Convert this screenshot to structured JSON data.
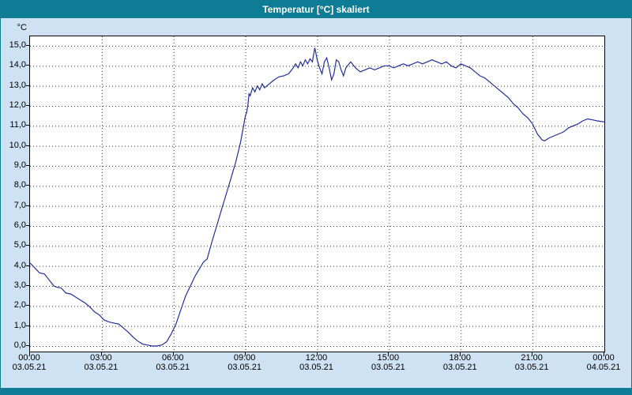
{
  "colors": {
    "titlebar": "#0e7c94",
    "title_text": "#ffffff",
    "background": "#cfe2f3",
    "plot_background": "#ffffff",
    "grid": "#333333",
    "line": "#232f9e"
  },
  "chart_data": {
    "type": "line",
    "title": "Temperatur [°C] skaliert",
    "xlabel": "",
    "ylabel": "°C",
    "ylim": [
      0,
      15
    ],
    "xlim_hours": [
      0,
      24
    ],
    "grid": "dashed",
    "legend": "none",
    "yticks": [
      {
        "v": 15,
        "label": "15,0"
      },
      {
        "v": 14,
        "label": "14,0"
      },
      {
        "v": 13,
        "label": "13,0"
      },
      {
        "v": 12,
        "label": "12,0"
      },
      {
        "v": 11,
        "label": "11,0"
      },
      {
        "v": 10,
        "label": "10,0"
      },
      {
        "v": 9,
        "label": "9,0"
      },
      {
        "v": 8,
        "label": "8,0"
      },
      {
        "v": 7,
        "label": "7,0"
      },
      {
        "v": 6,
        "label": "6,0"
      },
      {
        "v": 5,
        "label": "5,0"
      },
      {
        "v": 4,
        "label": "4,0"
      },
      {
        "v": 3,
        "label": "3,0"
      },
      {
        "v": 2,
        "label": "2,0"
      },
      {
        "v": 1,
        "label": "1,0"
      },
      {
        "v": 0,
        "label": "0,0"
      }
    ],
    "xticks": [
      {
        "h": 0,
        "time": "00:00",
        "date": "03.05.21"
      },
      {
        "h": 3,
        "time": "03:00",
        "date": "03.05.21"
      },
      {
        "h": 6,
        "time": "06:00",
        "date": "03.05.21"
      },
      {
        "h": 9,
        "time": "09:00",
        "date": "03.05.21"
      },
      {
        "h": 12,
        "time": "12:00",
        "date": "03.05.21"
      },
      {
        "h": 15,
        "time": "15:00",
        "date": "03.05.21"
      },
      {
        "h": 18,
        "time": "18:00",
        "date": "03.05.21"
      },
      {
        "h": 21,
        "time": "21:00",
        "date": "03.05.21"
      },
      {
        "h": 24,
        "time": "00:00",
        "date": "04.05.21"
      }
    ],
    "series": [
      {
        "name": "Temperatur [°C]",
        "color": "#232f9e",
        "points": [
          [
            0.0,
            4.15
          ],
          [
            0.2,
            3.9
          ],
          [
            0.4,
            3.65
          ],
          [
            0.6,
            3.6
          ],
          [
            0.8,
            3.3
          ],
          [
            1.0,
            3.0
          ],
          [
            1.1,
            2.95
          ],
          [
            1.3,
            2.9
          ],
          [
            1.5,
            2.65
          ],
          [
            1.7,
            2.6
          ],
          [
            1.9,
            2.45
          ],
          [
            2.1,
            2.3
          ],
          [
            2.3,
            2.15
          ],
          [
            2.5,
            1.95
          ],
          [
            2.7,
            1.7
          ],
          [
            2.9,
            1.55
          ],
          [
            3.1,
            1.3
          ],
          [
            3.3,
            1.2
          ],
          [
            3.5,
            1.15
          ],
          [
            3.7,
            1.1
          ],
          [
            3.9,
            0.9
          ],
          [
            4.1,
            0.7
          ],
          [
            4.3,
            0.45
          ],
          [
            4.5,
            0.25
          ],
          [
            4.7,
            0.1
          ],
          [
            4.9,
            0.05
          ],
          [
            5.1,
            0.0
          ],
          [
            5.3,
            0.0
          ],
          [
            5.5,
            0.05
          ],
          [
            5.7,
            0.2
          ],
          [
            5.9,
            0.6
          ],
          [
            6.1,
            1.1
          ],
          [
            6.3,
            1.8
          ],
          [
            6.5,
            2.5
          ],
          [
            6.7,
            3.0
          ],
          [
            6.9,
            3.5
          ],
          [
            7.1,
            3.9
          ],
          [
            7.25,
            4.2
          ],
          [
            7.4,
            4.35
          ],
          [
            7.6,
            5.2
          ],
          [
            7.8,
            6.0
          ],
          [
            8.0,
            6.8
          ],
          [
            8.2,
            7.6
          ],
          [
            8.4,
            8.4
          ],
          [
            8.6,
            9.2
          ],
          [
            8.8,
            10.2
          ],
          [
            9.0,
            11.5
          ],
          [
            9.05,
            11.65
          ],
          [
            9.1,
            12.0
          ],
          [
            9.15,
            12.6
          ],
          [
            9.2,
            12.5
          ],
          [
            9.3,
            12.9
          ],
          [
            9.4,
            12.7
          ],
          [
            9.5,
            13.0
          ],
          [
            9.6,
            12.8
          ],
          [
            9.7,
            13.1
          ],
          [
            9.8,
            12.9
          ],
          [
            9.9,
            13.0
          ],
          [
            10.0,
            13.1
          ],
          [
            10.2,
            13.3
          ],
          [
            10.4,
            13.45
          ],
          [
            10.6,
            13.5
          ],
          [
            10.8,
            13.6
          ],
          [
            11.0,
            13.9
          ],
          [
            11.1,
            14.1
          ],
          [
            11.2,
            13.9
          ],
          [
            11.3,
            14.2
          ],
          [
            11.4,
            14.0
          ],
          [
            11.5,
            14.3
          ],
          [
            11.6,
            14.1
          ],
          [
            11.7,
            14.35
          ],
          [
            11.8,
            14.2
          ],
          [
            11.9,
            14.9
          ],
          [
            12.0,
            14.3
          ],
          [
            12.1,
            13.9
          ],
          [
            12.2,
            13.6
          ],
          [
            12.3,
            14.2
          ],
          [
            12.4,
            14.4
          ],
          [
            12.5,
            13.9
          ],
          [
            12.6,
            13.3
          ],
          [
            12.7,
            13.6
          ],
          [
            12.8,
            14.3
          ],
          [
            12.9,
            14.2
          ],
          [
            13.0,
            13.8
          ],
          [
            13.1,
            13.5
          ],
          [
            13.2,
            13.9
          ],
          [
            13.4,
            14.2
          ],
          [
            13.6,
            13.9
          ],
          [
            13.8,
            13.7
          ],
          [
            14.0,
            13.8
          ],
          [
            14.2,
            13.9
          ],
          [
            14.4,
            13.8
          ],
          [
            14.6,
            13.9
          ],
          [
            14.8,
            14.0
          ],
          [
            15.0,
            14.0
          ],
          [
            15.2,
            13.9
          ],
          [
            15.4,
            14.0
          ],
          [
            15.6,
            14.1
          ],
          [
            15.8,
            14.0
          ],
          [
            16.0,
            14.1
          ],
          [
            16.2,
            14.2
          ],
          [
            16.4,
            14.1
          ],
          [
            16.6,
            14.2
          ],
          [
            16.8,
            14.3
          ],
          [
            17.0,
            14.2
          ],
          [
            17.2,
            14.1
          ],
          [
            17.4,
            14.2
          ],
          [
            17.6,
            14.0
          ],
          [
            17.8,
            13.9
          ],
          [
            18.0,
            14.1
          ],
          [
            18.2,
            14.0
          ],
          [
            18.4,
            13.9
          ],
          [
            18.6,
            13.7
          ],
          [
            18.8,
            13.5
          ],
          [
            19.0,
            13.4
          ],
          [
            19.2,
            13.2
          ],
          [
            19.4,
            13.0
          ],
          [
            19.6,
            12.8
          ],
          [
            19.8,
            12.6
          ],
          [
            20.0,
            12.4
          ],
          [
            20.2,
            12.1
          ],
          [
            20.4,
            11.9
          ],
          [
            20.6,
            11.6
          ],
          [
            20.8,
            11.4
          ],
          [
            21.0,
            11.1
          ],
          [
            21.2,
            10.6
          ],
          [
            21.4,
            10.3
          ],
          [
            21.5,
            10.25
          ],
          [
            21.7,
            10.4
          ],
          [
            21.9,
            10.5
          ],
          [
            22.1,
            10.6
          ],
          [
            22.3,
            10.7
          ],
          [
            22.5,
            10.9
          ],
          [
            22.7,
            11.0
          ],
          [
            22.9,
            11.1
          ],
          [
            23.1,
            11.25
          ],
          [
            23.3,
            11.35
          ],
          [
            23.5,
            11.3
          ],
          [
            23.7,
            11.25
          ],
          [
            24.0,
            11.2
          ]
        ]
      }
    ]
  }
}
